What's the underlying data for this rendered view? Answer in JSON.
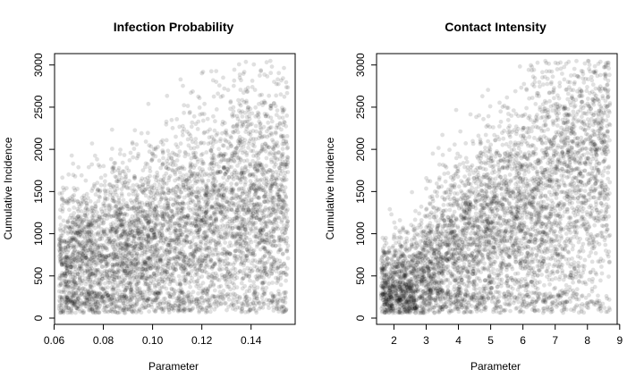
{
  "chart_data": [
    {
      "type": "scatter",
      "title": "Infection Probability",
      "xlabel": "Parameter",
      "ylabel": "Cumulative Incidence",
      "xlim": [
        0.062,
        0.155
      ],
      "ylim": [
        0,
        3050
      ],
      "xticks": [
        0.06,
        0.08,
        0.1,
        0.12,
        0.14
      ],
      "xtick_labels": [
        "0.06",
        "0.08",
        "0.10",
        "0.12",
        "0.14"
      ],
      "yticks": [
        0,
        500,
        1000,
        1500,
        2000,
        2500,
        3000
      ],
      "ytick_labels": [
        "0",
        "500",
        "1000",
        "1500",
        "2000",
        "2500",
        "3000"
      ],
      "grid": false,
      "point_color": "#000000",
      "point_opacity": 0.12,
      "point_count_estimate": 5000,
      "distribution_summary": {
        "x_range": [
          0.062,
          0.155
        ],
        "y_range": [
          60,
          3050
        ],
        "trend": "weak positive",
        "y_mean_at_x": [
          [
            0.065,
            650
          ],
          [
            0.08,
            720
          ],
          [
            0.1,
            900
          ],
          [
            0.12,
            1100
          ],
          [
            0.14,
            1300
          ],
          [
            0.155,
            1350
          ]
        ],
        "densest_region": {
          "x": [
            0.085,
            0.125
          ],
          "y": [
            400,
            1300
          ]
        }
      }
    },
    {
      "type": "scatter",
      "title": "Contact Intensity",
      "xlabel": "Parameter",
      "ylabel": "Cumulative Incidence",
      "xlim": [
        1.6,
        8.7
      ],
      "ylim": [
        0,
        3050
      ],
      "xticks": [
        2,
        3,
        4,
        5,
        6,
        7,
        8,
        9
      ],
      "xtick_labels": [
        "2",
        "3",
        "4",
        "5",
        "6",
        "7",
        "8",
        "9"
      ],
      "yticks": [
        0,
        500,
        1000,
        1500,
        2000,
        2500,
        3000
      ],
      "ytick_labels": [
        "0",
        "500",
        "1000",
        "1500",
        "2000",
        "2500",
        "3000"
      ],
      "grid": false,
      "point_color": "#000000",
      "point_opacity": 0.12,
      "point_count_estimate": 5000,
      "distribution_summary": {
        "x_range": [
          1.6,
          8.7
        ],
        "y_range": [
          60,
          3050
        ],
        "trend": "strong positive",
        "y_mean_at_x": [
          [
            1.8,
            350
          ],
          [
            2.5,
            400
          ],
          [
            3.5,
            750
          ],
          [
            4.5,
            950
          ],
          [
            5.5,
            1100
          ],
          [
            6.5,
            1350
          ],
          [
            7.5,
            1650
          ],
          [
            8.5,
            1800
          ]
        ],
        "densest_region": {
          "x": [
            3.5,
            6.0
          ],
          "y": [
            500,
            1500
          ]
        }
      }
    }
  ]
}
